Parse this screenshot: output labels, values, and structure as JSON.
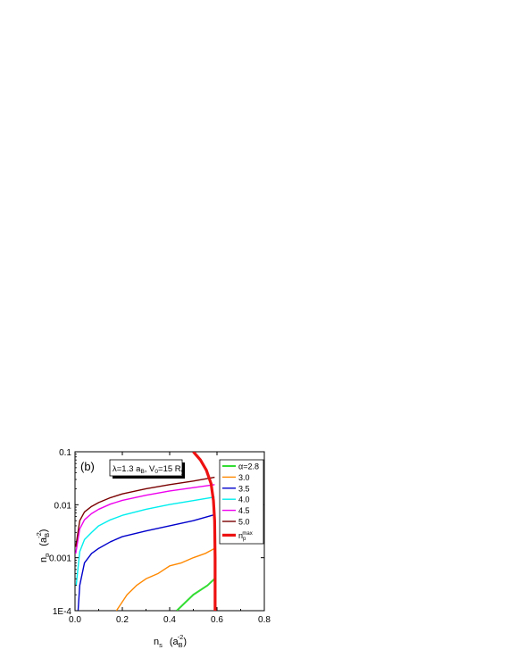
{
  "chart_data": {
    "type": "line",
    "panel_label": "(b)",
    "annotation": {
      "lambda_sym": "λ",
      "lambda_text": "=1.3 a",
      "lambda_sub": "B",
      "v_text": ", V",
      "v_sub": "0",
      "v_val": "=15 R",
      "v_sub2": "y"
    },
    "x_axis": {
      "label": "n",
      "label_sub": "s",
      "unit_open": "(a",
      "unit_sub": "B",
      "unit_sup": "-2",
      "unit_close": ")",
      "range": [
        0,
        0.8
      ],
      "ticks": [
        "0.0",
        "0.2",
        "0.4",
        "0.6",
        "0.8"
      ],
      "tick_values": [
        0,
        0.2,
        0.4,
        0.6,
        0.8
      ]
    },
    "y_axis": {
      "label": "n",
      "label_sub": "p",
      "unit_open": "(a",
      "unit_sub": "B",
      "unit_sup": "-2",
      "unit_close": ")",
      "scale": "log",
      "range": [
        0.0001,
        0.1
      ],
      "ticks": [
        "1E-4",
        "0.001",
        "0.01",
        "0.1"
      ],
      "tick_values": [
        0.0001,
        0.001,
        0.01,
        0.1
      ]
    },
    "series": [
      {
        "name": "α=2.8",
        "color": "#33dd33",
        "width": 2,
        "x": [
          0.43,
          0.5,
          0.56,
          0.59
        ],
        "y": [
          0.0001,
          0.0002,
          0.0003,
          0.0004
        ]
      },
      {
        "name": "3.0",
        "color": "#ff8800",
        "width": 1.4,
        "x": [
          0.175,
          0.22,
          0.26,
          0.3,
          0.35,
          0.4,
          0.45,
          0.5,
          0.55,
          0.59
        ],
        "y": [
          0.0001,
          0.0002,
          0.0003,
          0.0004,
          0.0005,
          0.0007,
          0.0008,
          0.001,
          0.0012,
          0.0015
        ]
      },
      {
        "name": "3.5",
        "color": "#0000cc",
        "width": 1.4,
        "x": [
          0.013,
          0.02,
          0.04,
          0.07,
          0.1,
          0.15,
          0.2,
          0.3,
          0.4,
          0.5,
          0.59
        ],
        "y": [
          0.0001,
          0.0003,
          0.0008,
          0.0012,
          0.0015,
          0.002,
          0.0025,
          0.0032,
          0.004,
          0.005,
          0.0065
        ]
      },
      {
        "name": "4.0",
        "color": "#00eeee",
        "width": 1.4,
        "x": [
          0.005,
          0.02,
          0.04,
          0.07,
          0.1,
          0.15,
          0.2,
          0.3,
          0.4,
          0.5,
          0.59
        ],
        "y": [
          0.0003,
          0.0013,
          0.0022,
          0.003,
          0.004,
          0.0052,
          0.0063,
          0.0082,
          0.0101,
          0.012,
          0.014
        ]
      },
      {
        "name": "4.5",
        "color": "#ee00ee",
        "width": 1.4,
        "x": [
          0.003,
          0.02,
          0.04,
          0.07,
          0.1,
          0.15,
          0.2,
          0.3,
          0.4,
          0.5,
          0.59
        ],
        "y": [
          0.0012,
          0.0035,
          0.0052,
          0.0068,
          0.0082,
          0.0103,
          0.0121,
          0.0151,
          0.0182,
          0.021,
          0.024
        ]
      },
      {
        "name": "5.0",
        "color": "#7a0000",
        "width": 1.4,
        "x": [
          0.003,
          0.02,
          0.04,
          0.07,
          0.1,
          0.15,
          0.2,
          0.3,
          0.4,
          0.5,
          0.59
        ],
        "y": [
          0.0016,
          0.005,
          0.0073,
          0.0093,
          0.011,
          0.0136,
          0.016,
          0.02,
          0.024,
          0.028,
          0.033
        ]
      },
      {
        "name": "n",
        "name_sub": "p",
        "name_sup": "max",
        "color": "#ee1111",
        "width": 3.2,
        "x": [
          0.5,
          0.53,
          0.555,
          0.575,
          0.585,
          0.59,
          0.592,
          0.592
        ],
        "y": [
          0.1,
          0.07,
          0.045,
          0.025,
          0.012,
          0.005,
          0.001,
          0.0001
        ]
      }
    ]
  }
}
